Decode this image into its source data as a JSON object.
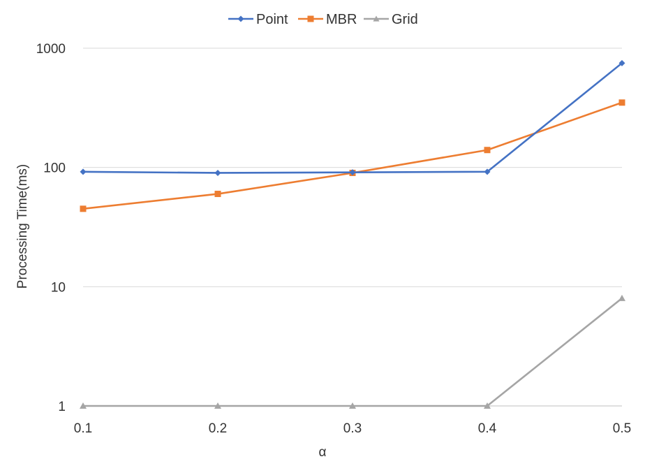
{
  "chart_data": {
    "type": "line",
    "x": [
      "0.1",
      "0.2",
      "0.3",
      "0.4",
      "0.5"
    ],
    "series": [
      {
        "name": "Point",
        "color": "#4472C4",
        "marker": "diamond",
        "values": [
          92,
          90,
          91,
          92,
          750
        ]
      },
      {
        "name": "MBR",
        "color": "#ED7D31",
        "marker": "square",
        "values": [
          45,
          60,
          90,
          140,
          350
        ]
      },
      {
        "name": "Grid",
        "color": "#A5A5A5",
        "marker": "triangle",
        "values": [
          1,
          1,
          1,
          1,
          8
        ]
      }
    ],
    "title": "",
    "xlabel": "α",
    "ylabel": "Processing Time(ms)",
    "yscale": "log",
    "ylim": [
      1,
      1000
    ],
    "yticks": [
      "1",
      "10",
      "100",
      "1000"
    ],
    "grid": "horizontal",
    "legend_position": "top-center"
  }
}
